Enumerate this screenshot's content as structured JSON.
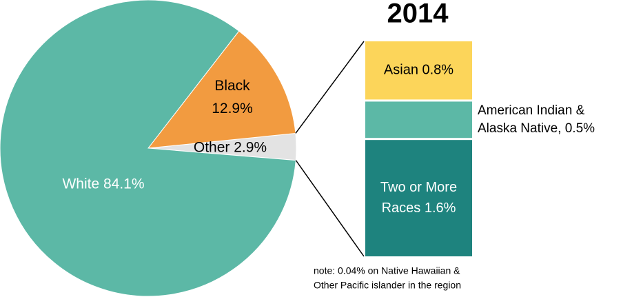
{
  "chart_data": [
    {
      "type": "pie",
      "title": "2014",
      "values": [
        84.1,
        12.9,
        2.9
      ],
      "value_labels": [
        [
          "White 84.1%"
        ],
        [
          "Black",
          "12.9%"
        ],
        [
          "Other 2.9%"
        ]
      ],
      "colors": [
        "#5cb8a6",
        "#f29b40",
        "#e3e3e3"
      ]
    },
    {
      "type": "bar",
      "values": [
        0.8,
        0.5,
        1.6
      ],
      "value_labels": [
        [
          "Asian 0.8%"
        ],
        [
          "American Indian &",
          "Alaska Native, 0.5%"
        ],
        [
          "Two or More",
          "Races 1.6%"
        ]
      ],
      "colors": [
        "#fcd55a",
        "#5cb8a6",
        "#1e837e"
      ],
      "note": [
        "note: 0.04% on Native Hawaiian &",
        "Other Pacific islander in the region"
      ]
    }
  ]
}
